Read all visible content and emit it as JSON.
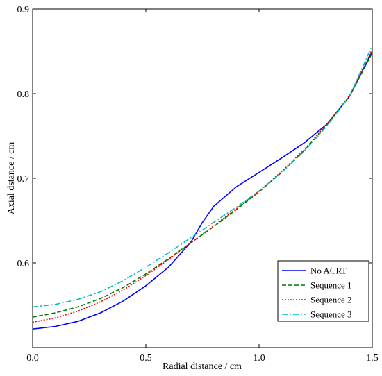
{
  "chart_data": {
    "type": "line",
    "title": "",
    "xlabel": "Radial distance / cm",
    "ylabel": "Axial dstance / cm",
    "xlim": [
      0,
      1.5
    ],
    "ylim": [
      0.5,
      0.9
    ],
    "xticks": [
      0,
      0.5,
      1,
      1.5
    ],
    "xtick_labels": [
      "0.0",
      "0.5",
      "1.0",
      "1.5"
    ],
    "yticks": [
      0.6,
      0.7,
      0.8,
      0.9
    ],
    "ytick_labels": [
      "0.6",
      "0.7",
      "0.8",
      "0.9"
    ],
    "grid": false,
    "legend_position": "bottom-right",
    "series": [
      {
        "name": "No ACRT",
        "color": "#0000ff",
        "dash": "solid",
        "x": [
          0,
          0.1,
          0.2,
          0.3,
          0.4,
          0.5,
          0.6,
          0.7,
          0.75,
          0.8,
          0.9,
          1.0,
          1.1,
          1.2,
          1.3,
          1.4,
          1.5
        ],
        "y": [
          0.522,
          0.525,
          0.531,
          0.541,
          0.555,
          0.573,
          0.595,
          0.625,
          0.648,
          0.667,
          0.69,
          0.707,
          0.724,
          0.742,
          0.764,
          0.797,
          0.85
        ]
      },
      {
        "name": "Sequence 1",
        "color": "#007a00",
        "dash": "dashed",
        "x": [
          0,
          0.1,
          0.2,
          0.3,
          0.4,
          0.5,
          0.6,
          0.7,
          0.8,
          0.9,
          1.0,
          1.1,
          1.2,
          1.3,
          1.4,
          1.5
        ],
        "y": [
          0.536,
          0.541,
          0.548,
          0.558,
          0.571,
          0.587,
          0.605,
          0.624,
          0.643,
          0.663,
          0.684,
          0.707,
          0.733,
          0.763,
          0.797,
          0.848
        ]
      },
      {
        "name": "Sequence 2",
        "color": "#ff0000",
        "dash": "dotted",
        "x": [
          0,
          0.1,
          0.2,
          0.3,
          0.4,
          0.5,
          0.6,
          0.7,
          0.8,
          0.9,
          1.0,
          1.1,
          1.2,
          1.3,
          1.4,
          1.5
        ],
        "y": [
          0.53,
          0.535,
          0.543,
          0.554,
          0.568,
          0.585,
          0.604,
          0.624,
          0.644,
          0.664,
          0.685,
          0.708,
          0.734,
          0.764,
          0.798,
          0.852
        ]
      },
      {
        "name": "Sequence 3",
        "color": "#00bfbf",
        "dash": "dashdot",
        "x": [
          0,
          0.1,
          0.2,
          0.3,
          0.4,
          0.5,
          0.6,
          0.7,
          0.8,
          0.9,
          1.0,
          1.1,
          1.2,
          1.3,
          1.4,
          1.5
        ],
        "y": [
          0.548,
          0.551,
          0.557,
          0.566,
          0.579,
          0.595,
          0.612,
          0.63,
          0.648,
          0.666,
          0.685,
          0.707,
          0.732,
          0.762,
          0.797,
          0.857
        ]
      }
    ]
  }
}
